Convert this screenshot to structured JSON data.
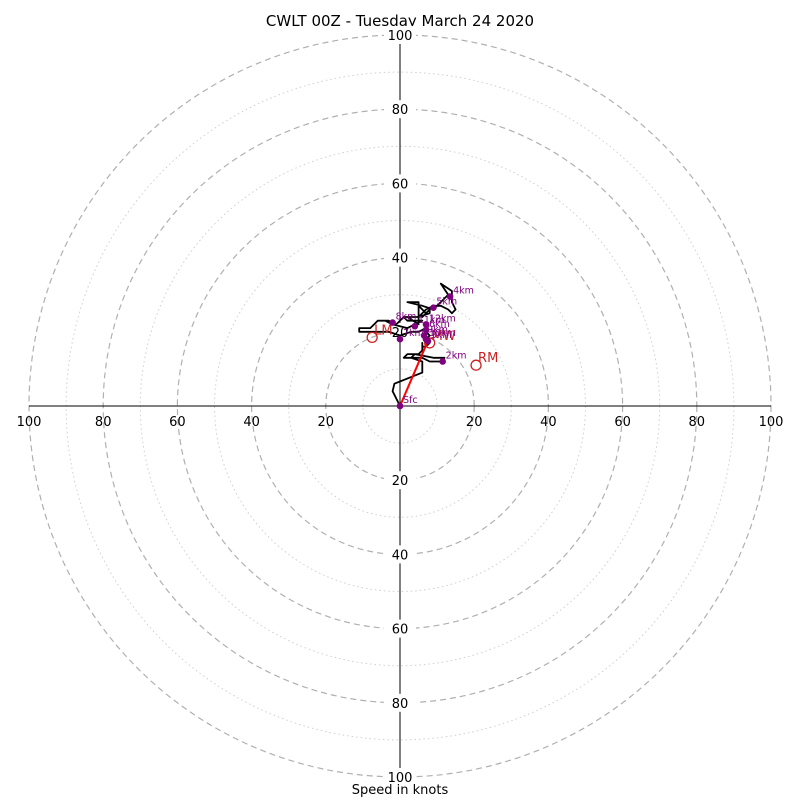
{
  "chart_data": {
    "type": "hodograph",
    "title": "CWLT 00Z - Tuesday March 24 2020",
    "xlabel": "Speed in knots",
    "ylabel": "",
    "range": [
      -100,
      100
    ],
    "ring_step": 20,
    "minor_ring_step": 10,
    "axis_tick_labels": [
      "100",
      "80",
      "60",
      "40",
      "20",
      "20",
      "40",
      "60",
      "80",
      "100"
    ],
    "grid": true,
    "hodograph_trace": [
      [
        0,
        0
      ],
      [
        -2,
        4
      ],
      [
        -1.5,
        6
      ],
      [
        6,
        9
      ],
      [
        6,
        12
      ],
      [
        3,
        13
      ],
      [
        4,
        14
      ],
      [
        9,
        13
      ],
      [
        12,
        13
      ],
      [
        11,
        12
      ],
      [
        8,
        12
      ],
      [
        6,
        13
      ],
      [
        4,
        13
      ],
      [
        1,
        13
      ],
      [
        2,
        14
      ],
      [
        5,
        14
      ],
      [
        6,
        15
      ],
      [
        6,
        17
      ],
      [
        6,
        16
      ],
      [
        7,
        16
      ],
      [
        8,
        17
      ],
      [
        7,
        18
      ],
      [
        8,
        19
      ],
      [
        7,
        20
      ],
      [
        7,
        21
      ],
      [
        5,
        20
      ],
      [
        3,
        20
      ],
      [
        0,
        19
      ],
      [
        -3,
        20
      ],
      [
        -6,
        20
      ],
      [
        -9,
        20
      ],
      [
        -11,
        20
      ],
      [
        -11,
        21
      ],
      [
        -8,
        21
      ],
      [
        -6,
        23
      ],
      [
        -4,
        23
      ],
      [
        -2,
        22
      ],
      [
        2,
        21
      ],
      [
        6,
        23
      ],
      [
        4,
        23
      ],
      [
        2,
        23
      ],
      [
        1,
        24
      ],
      [
        5,
        24
      ],
      [
        8,
        25
      ],
      [
        8,
        26
      ],
      [
        6,
        24
      ],
      [
        7,
        25
      ],
      [
        5,
        27
      ],
      [
        5,
        28
      ],
      [
        2,
        28
      ],
      [
        6,
        27
      ],
      [
        9,
        26
      ],
      [
        12,
        29
      ],
      [
        13,
        30
      ],
      [
        11,
        33
      ],
      [
        14,
        31
      ],
      [
        14,
        28
      ],
      [
        15,
        26
      ],
      [
        14,
        25
      ],
      [
        13,
        26
      ],
      [
        11,
        27
      ],
      [
        9,
        27
      ],
      [
        7,
        26
      ],
      [
        6,
        25
      ],
      [
        5,
        24
      ],
      [
        5,
        27
      ],
      [
        5,
        22
      ],
      [
        2,
        24
      ],
      [
        1,
        24
      ],
      [
        -1,
        22
      ],
      [
        -2,
        22
      ],
      [
        -3,
        23
      ],
      [
        -4,
        23
      ]
    ],
    "height_markers": [
      {
        "label": "Sfc",
        "x": 0,
        "y": 0
      },
      {
        "label": "2km",
        "x": 11.5,
        "y": 12
      },
      {
        "label": "3km",
        "x": 7.5,
        "y": 17.5
      },
      {
        "label": "4km",
        "x": 13.5,
        "y": 29.5
      },
      {
        "label": "5km",
        "x": 9,
        "y": 26.5
      },
      {
        "label": "6km",
        "x": 7,
        "y": 20.5
      },
      {
        "label": "7km",
        "x": 0,
        "y": 18
      },
      {
        "label": "8km",
        "x": -2,
        "y": 22.5
      },
      {
        "label": "9km",
        "x": 6.5,
        "y": 19
      },
      {
        "label": "10km",
        "x": 7,
        "y": 18
      },
      {
        "label": "11km",
        "x": 4,
        "y": 21.5
      },
      {
        "label": "12km",
        "x": 7,
        "y": 22
      }
    ],
    "storm_motions": [
      {
        "label": "RM",
        "x": 20.5,
        "y": 11
      },
      {
        "label": "LM",
        "x": -7.5,
        "y": 18.5
      },
      {
        "label": "MW",
        "x": 8,
        "y": 17
      }
    ],
    "shear_vector": {
      "from": [
        0,
        0
      ],
      "to": [
        7.5,
        17.5
      ]
    },
    "colors": {
      "trace": "#000000",
      "markers": "#800080",
      "storm_motion": "#cc2222",
      "shear_vector": "#ff0000",
      "grid": "#b0b0b0",
      "axis": "#000000"
    }
  }
}
